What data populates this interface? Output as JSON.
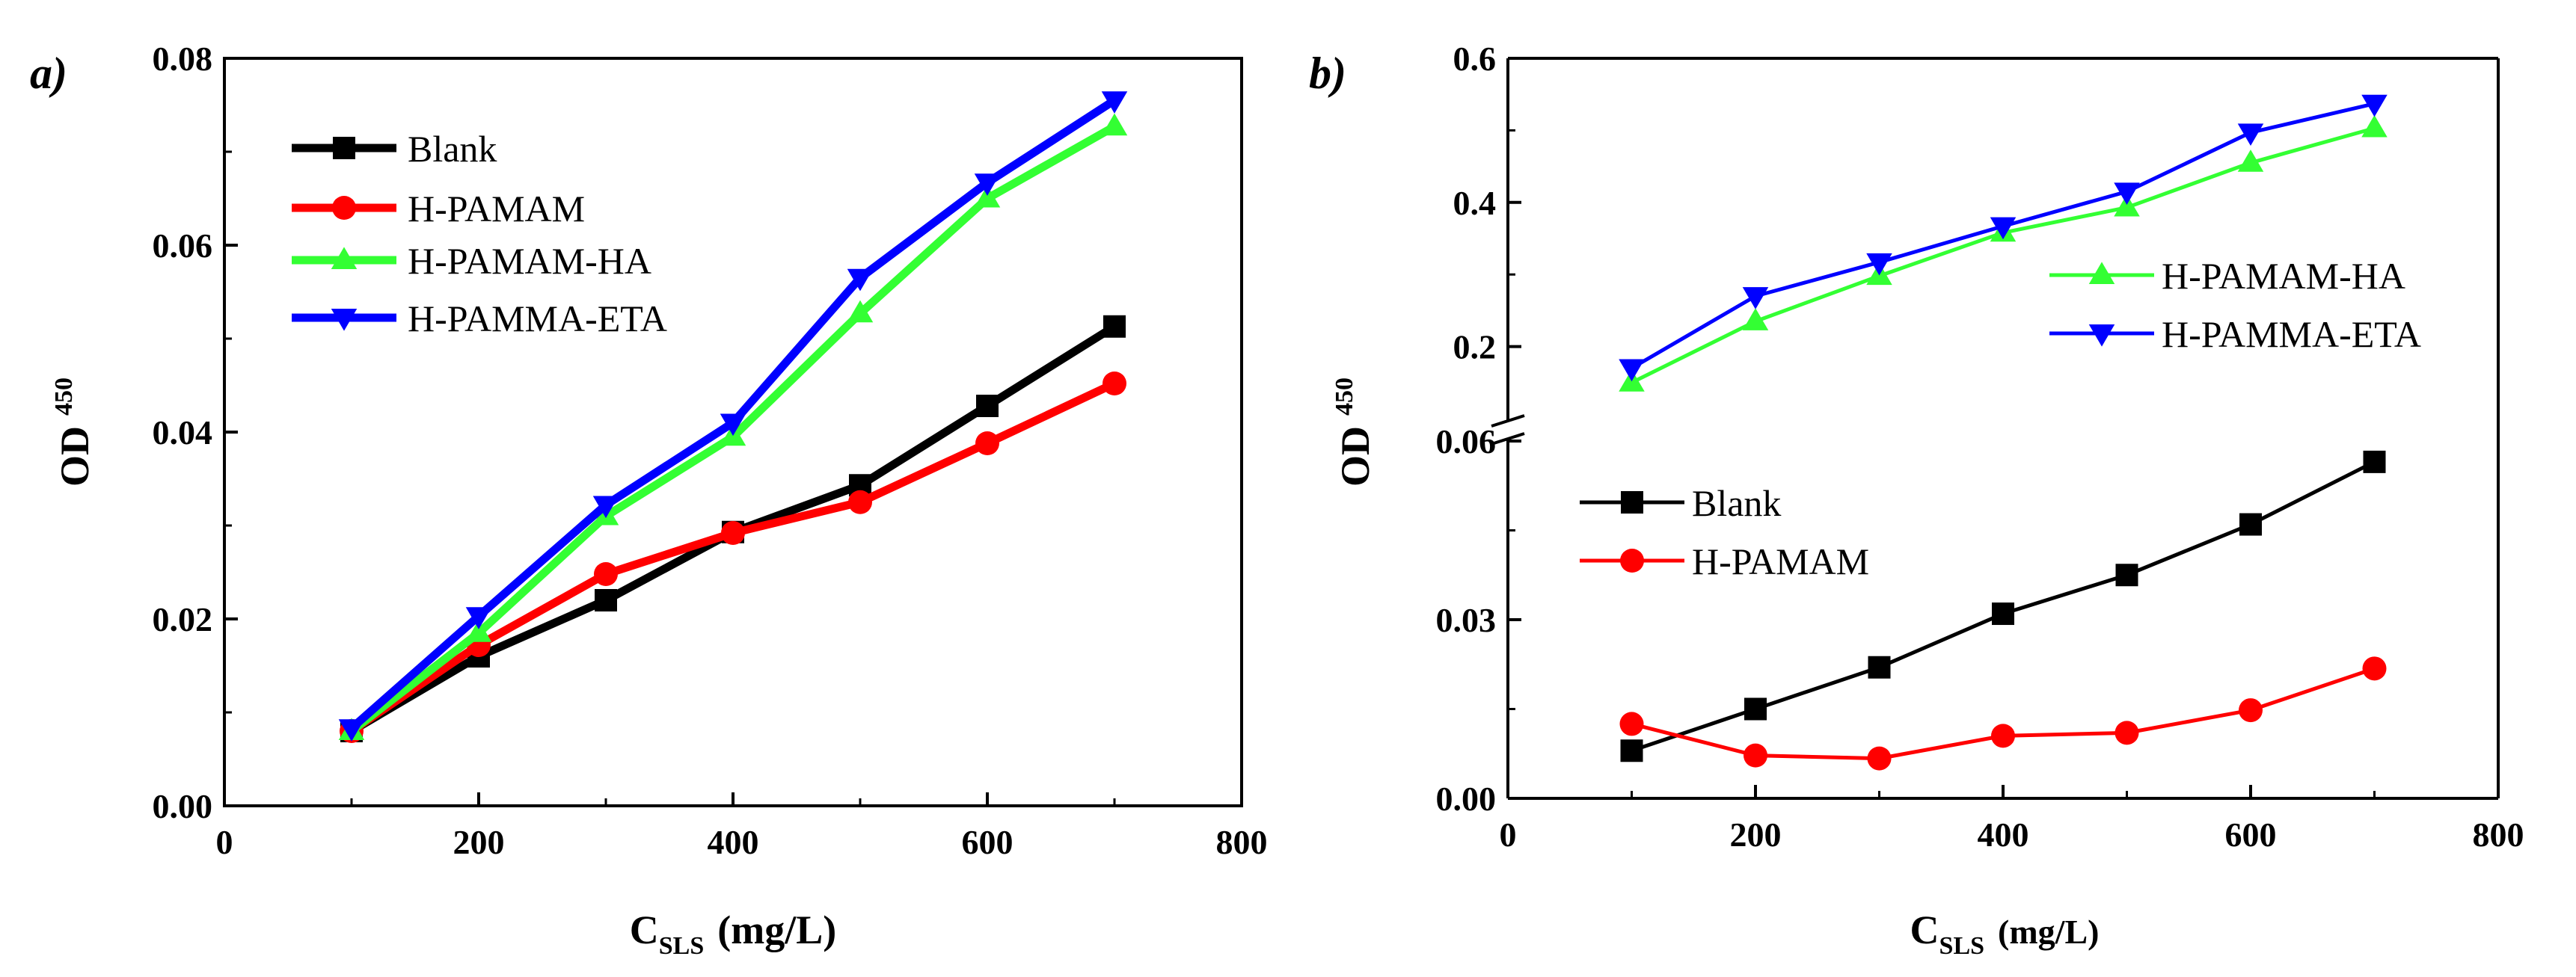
{
  "chart_data": [
    {
      "type": "line",
      "panel_label": "a)",
      "xlabel": {
        "main": "C",
        "sub": "SLS",
        "unit": "(mg/L)"
      },
      "ylabel": {
        "main": "OD",
        "sub": "450"
      },
      "xlim": [
        0,
        800
      ],
      "ylim": [
        0,
        0.08
      ],
      "xticks": [
        0,
        200,
        400,
        600,
        800
      ],
      "xtick_labels": [
        "0",
        "200",
        "400",
        "600",
        "800"
      ],
      "yticks": [
        0,
        0.02,
        0.04,
        0.06,
        0.08
      ],
      "ytick_labels": [
        "0.00",
        "0.02",
        "0.04",
        "0.06",
        "0.08"
      ],
      "grid": false,
      "legend_position": "upper-left",
      "x": [
        100,
        200,
        300,
        400,
        500,
        600,
        700
      ],
      "series": [
        {
          "name": "Blank",
          "color": "#000000",
          "marker": "square",
          "values": [
            0.008,
            0.016,
            0.022,
            0.0293,
            0.0343,
            0.0428,
            0.0513
          ]
        },
        {
          "name": "H-PAMAM",
          "color": "#ff0000",
          "marker": "circle",
          "values": [
            0.008,
            0.0172,
            0.0248,
            0.0292,
            0.0325,
            0.0388,
            0.0452
          ]
        },
        {
          "name": "H-PAMAM-HA",
          "color": "#33ff33",
          "marker": "triangle-up",
          "values": [
            0.008,
            0.0185,
            0.031,
            0.0395,
            0.0527,
            0.065,
            0.0727
          ]
        },
        {
          "name": "H-PAMMA-ETA",
          "color": "#0000ff",
          "marker": "triangle-down",
          "values": [
            0.0083,
            0.0203,
            0.0322,
            0.041,
            0.0565,
            0.0667,
            0.0755
          ]
        }
      ]
    },
    {
      "type": "line",
      "panel_label": "b)",
      "xlabel": {
        "main": "C",
        "sub": "SLS",
        "unit": "(mg/L)"
      },
      "ylabel": {
        "main": "OD",
        "sub": "450"
      },
      "xlim": [
        0,
        800
      ],
      "xticks": [
        0,
        200,
        400,
        600,
        800
      ],
      "xtick_labels": [
        "0",
        "200",
        "400",
        "600",
        "800"
      ],
      "broken_y_axis": true,
      "ylim_lower": [
        0,
        0.06
      ],
      "yticks_lower": [
        0,
        0.03,
        0.06
      ],
      "ytick_labels_lower": [
        "0.00",
        "0.03",
        "0.06"
      ],
      "ylim_upper": [
        0.1,
        0.6
      ],
      "yticks_upper": [
        0.2,
        0.4,
        0.6
      ],
      "ytick_labels_upper": [
        "0.2",
        "0.4",
        "0.6"
      ],
      "grid": false,
      "x": [
        100,
        200,
        300,
        400,
        500,
        600,
        700
      ],
      "series": [
        {
          "name": "Blank",
          "color": "#000000",
          "marker": "square",
          "segment": "lower",
          "values": [
            0.008,
            0.015,
            0.022,
            0.031,
            0.0375,
            0.046,
            0.0565
          ]
        },
        {
          "name": "H-PAMAM",
          "color": "#ff0000",
          "marker": "circle",
          "segment": "lower",
          "values": [
            0.0125,
            0.0072,
            0.0067,
            0.0105,
            0.011,
            0.0148,
            0.0218
          ]
        },
        {
          "name": "H-PAMAM-HA",
          "color": "#33ff33",
          "marker": "triangle-up",
          "segment": "upper",
          "values": [
            0.15,
            0.235,
            0.298,
            0.358,
            0.393,
            0.455,
            0.503
          ]
        },
        {
          "name": "H-PAMMA-ETA",
          "color": "#0000ff",
          "marker": "triangle-down",
          "segment": "upper",
          "values": [
            0.17,
            0.27,
            0.317,
            0.367,
            0.415,
            0.497,
            0.537
          ]
        }
      ],
      "legends": [
        {
          "position": "upper-right",
          "series": [
            "H-PAMAM-HA",
            "H-PAMMA-ETA"
          ]
        },
        {
          "position": "middle-left",
          "series": [
            "Blank",
            "H-PAMAM"
          ]
        }
      ]
    }
  ]
}
